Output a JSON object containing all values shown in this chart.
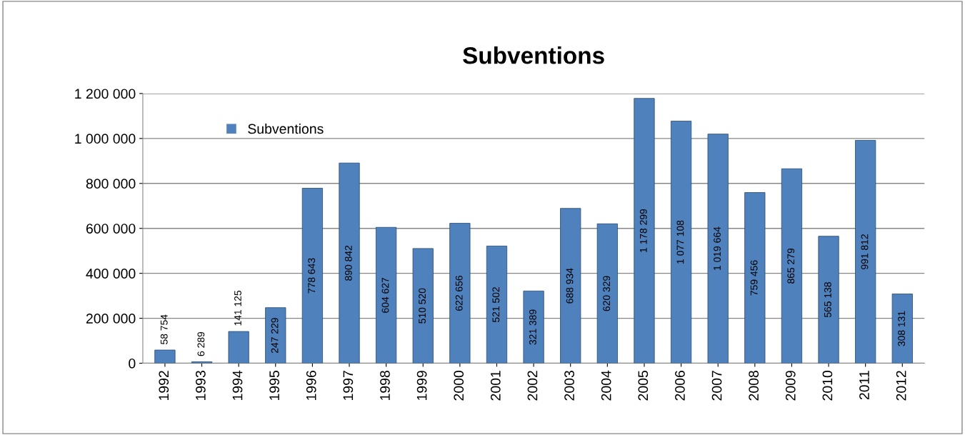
{
  "chart_data": {
    "type": "bar",
    "title": "Subventions",
    "categories": [
      "1992",
      "1993",
      "1994",
      "1995",
      "1996",
      "1997",
      "1998",
      "1999",
      "2000",
      "2001",
      "2002",
      "2003",
      "2004",
      "2005",
      "2006",
      "2007",
      "2008",
      "2009",
      "2010",
      "2011",
      "2012"
    ],
    "series": [
      {
        "name": "Subventions",
        "color": "#4f81bd",
        "values": [
          58754,
          6289,
          141125,
          247229,
          778643,
          890842,
          604627,
          510520,
          622656,
          521502,
          321389,
          688934,
          620329,
          1178299,
          1077108,
          1019664,
          759456,
          865279,
          565138,
          991812,
          308131
        ]
      }
    ],
    "value_labels": [
      "58 754",
      "6 289",
      "141 125",
      "247 229",
      "778 643",
      "890 842",
      "604 627",
      "510 520",
      "622 656",
      "521 502",
      "321 389",
      "688 934",
      "620 329",
      "1 178 299",
      "1 077 108",
      "1 019 664",
      "759 456",
      "865 279",
      "565 138",
      "991 812",
      "308 131"
    ],
    "ylim": [
      0,
      1200000
    ],
    "yticks": [
      0,
      {
        "value": 200000,
        "label": "200 000"
      },
      {
        "value": 400000,
        "label": "400 000"
      },
      {
        "value": 600000,
        "label": "600 000"
      },
      {
        "value": 800000,
        "label": "800 000"
      },
      {
        "value": 1000000,
        "label": "1 000 000"
      },
      {
        "value": 1200000,
        "label": "1 200 000"
      }
    ],
    "grid": "y",
    "legend": "top left"
  }
}
